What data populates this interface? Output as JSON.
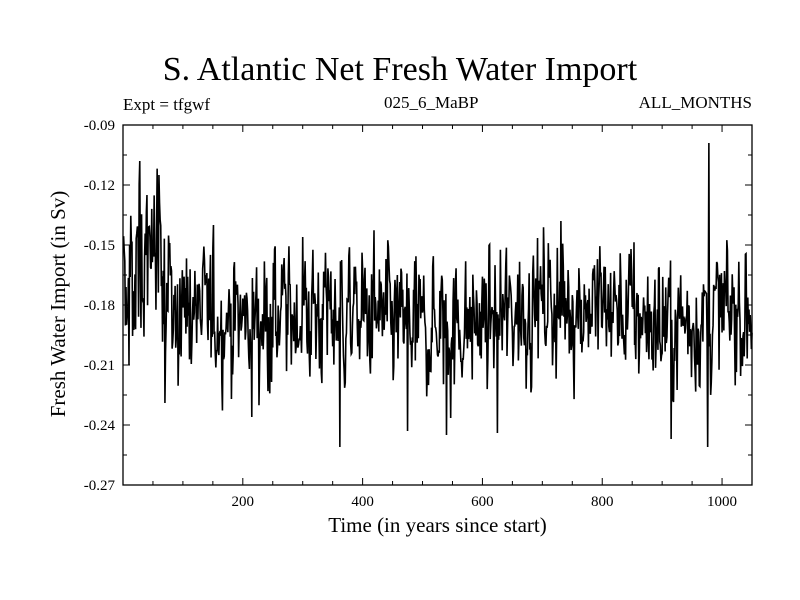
{
  "chart_data": {
    "type": "line",
    "title": "S. Atlantic Net Fresh Water Import",
    "subtitle_left": "Expt = tfgwf",
    "subtitle_center": "025_6_MaBP",
    "subtitle_right": "ALL_MONTHS",
    "xlabel": "Time (in years since start)",
    "ylabel": "Fresh Water Import (in Sv)",
    "xlim": [
      0,
      1050
    ],
    "ylim": [
      -0.27,
      -0.09
    ],
    "xticks": [
      200,
      400,
      600,
      800,
      1000
    ],
    "xtick_labels": [
      "200",
      "400",
      "600",
      "800",
      "1000"
    ],
    "yticks": [
      -0.09,
      -0.12,
      -0.15,
      -0.18,
      -0.21,
      -0.24,
      -0.27
    ],
    "ytick_labels": [
      "-0.09",
      "-0.12",
      "-0.15",
      "-0.18",
      "-0.21",
      "-0.24",
      "-0.27"
    ],
    "series": [
      {
        "name": "Net Fresh Water Import",
        "x_start": 1,
        "x_step": 1,
        "n_points": 1050,
        "mean_profile": [
          {
            "x": 0,
            "y": -0.165
          },
          {
            "x": 50,
            "y": -0.158
          },
          {
            "x": 100,
            "y": -0.183
          },
          {
            "x": 200,
            "y": -0.188
          },
          {
            "x": 300,
            "y": -0.183
          },
          {
            "x": 400,
            "y": -0.185
          },
          {
            "x": 500,
            "y": -0.192
          },
          {
            "x": 600,
            "y": -0.189
          },
          {
            "x": 700,
            "y": -0.178
          },
          {
            "x": 800,
            "y": -0.18
          },
          {
            "x": 900,
            "y": -0.19
          },
          {
            "x": 1000,
            "y": -0.185
          },
          {
            "x": 1050,
            "y": -0.182
          }
        ],
        "noise_sd": 0.018,
        "extremes": [
          {
            "x": 28,
            "y": -0.108
          },
          {
            "x": 40,
            "y": -0.125
          },
          {
            "x": 10,
            "y": -0.21
          },
          {
            "x": 70,
            "y": -0.229
          },
          {
            "x": 215,
            "y": -0.236
          },
          {
            "x": 362,
            "y": -0.251
          },
          {
            "x": 475,
            "y": -0.243
          },
          {
            "x": 540,
            "y": -0.245
          },
          {
            "x": 625,
            "y": -0.244
          },
          {
            "x": 915,
            "y": -0.247
          },
          {
            "x": 978,
            "y": -0.099
          },
          {
            "x": 976,
            "y": -0.251
          }
        ]
      }
    ]
  }
}
